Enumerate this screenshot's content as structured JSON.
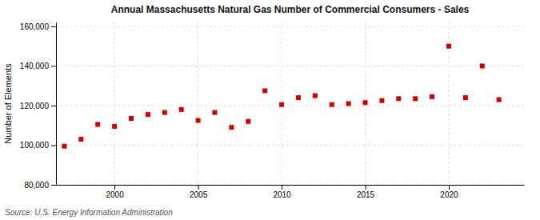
{
  "chart_data": {
    "type": "scatter",
    "title": "Annual Massachusetts Natural Gas Number of Commercial Consumers - Sales",
    "ylabel": "Number of Elements",
    "source": "Source: U.S. Energy Information Administration",
    "x": [
      1997,
      1998,
      1999,
      2000,
      2001,
      2002,
      2003,
      2004,
      2005,
      2006,
      2007,
      2008,
      2009,
      2010,
      2011,
      2012,
      2013,
      2014,
      2015,
      2016,
      2017,
      2018,
      2019,
      2020,
      2021,
      2022,
      2023
    ],
    "values": [
      99500,
      103000,
      110500,
      109500,
      113500,
      115500,
      116500,
      118000,
      112500,
      116500,
      109000,
      112000,
      127500,
      120500,
      124000,
      125000,
      120500,
      121000,
      121500,
      122500,
      123500,
      123500,
      124500,
      150000,
      124000,
      140000,
      123000
    ],
    "color": "#cc0000",
    "marker": "square",
    "grid": true,
    "xlim": [
      1996.5,
      2024.5
    ],
    "xticks": [
      2000,
      2005,
      2010,
      2015,
      2020
    ],
    "ylim": [
      80000,
      162000
    ],
    "yticks": [
      {
        "value": 80000,
        "label": "80,000"
      },
      {
        "value": 100000,
        "label": "100,000"
      },
      {
        "value": 120000,
        "label": "120,000"
      },
      {
        "value": 140000,
        "label": "140,000"
      },
      {
        "value": 160000,
        "label": "160,000"
      }
    ]
  }
}
